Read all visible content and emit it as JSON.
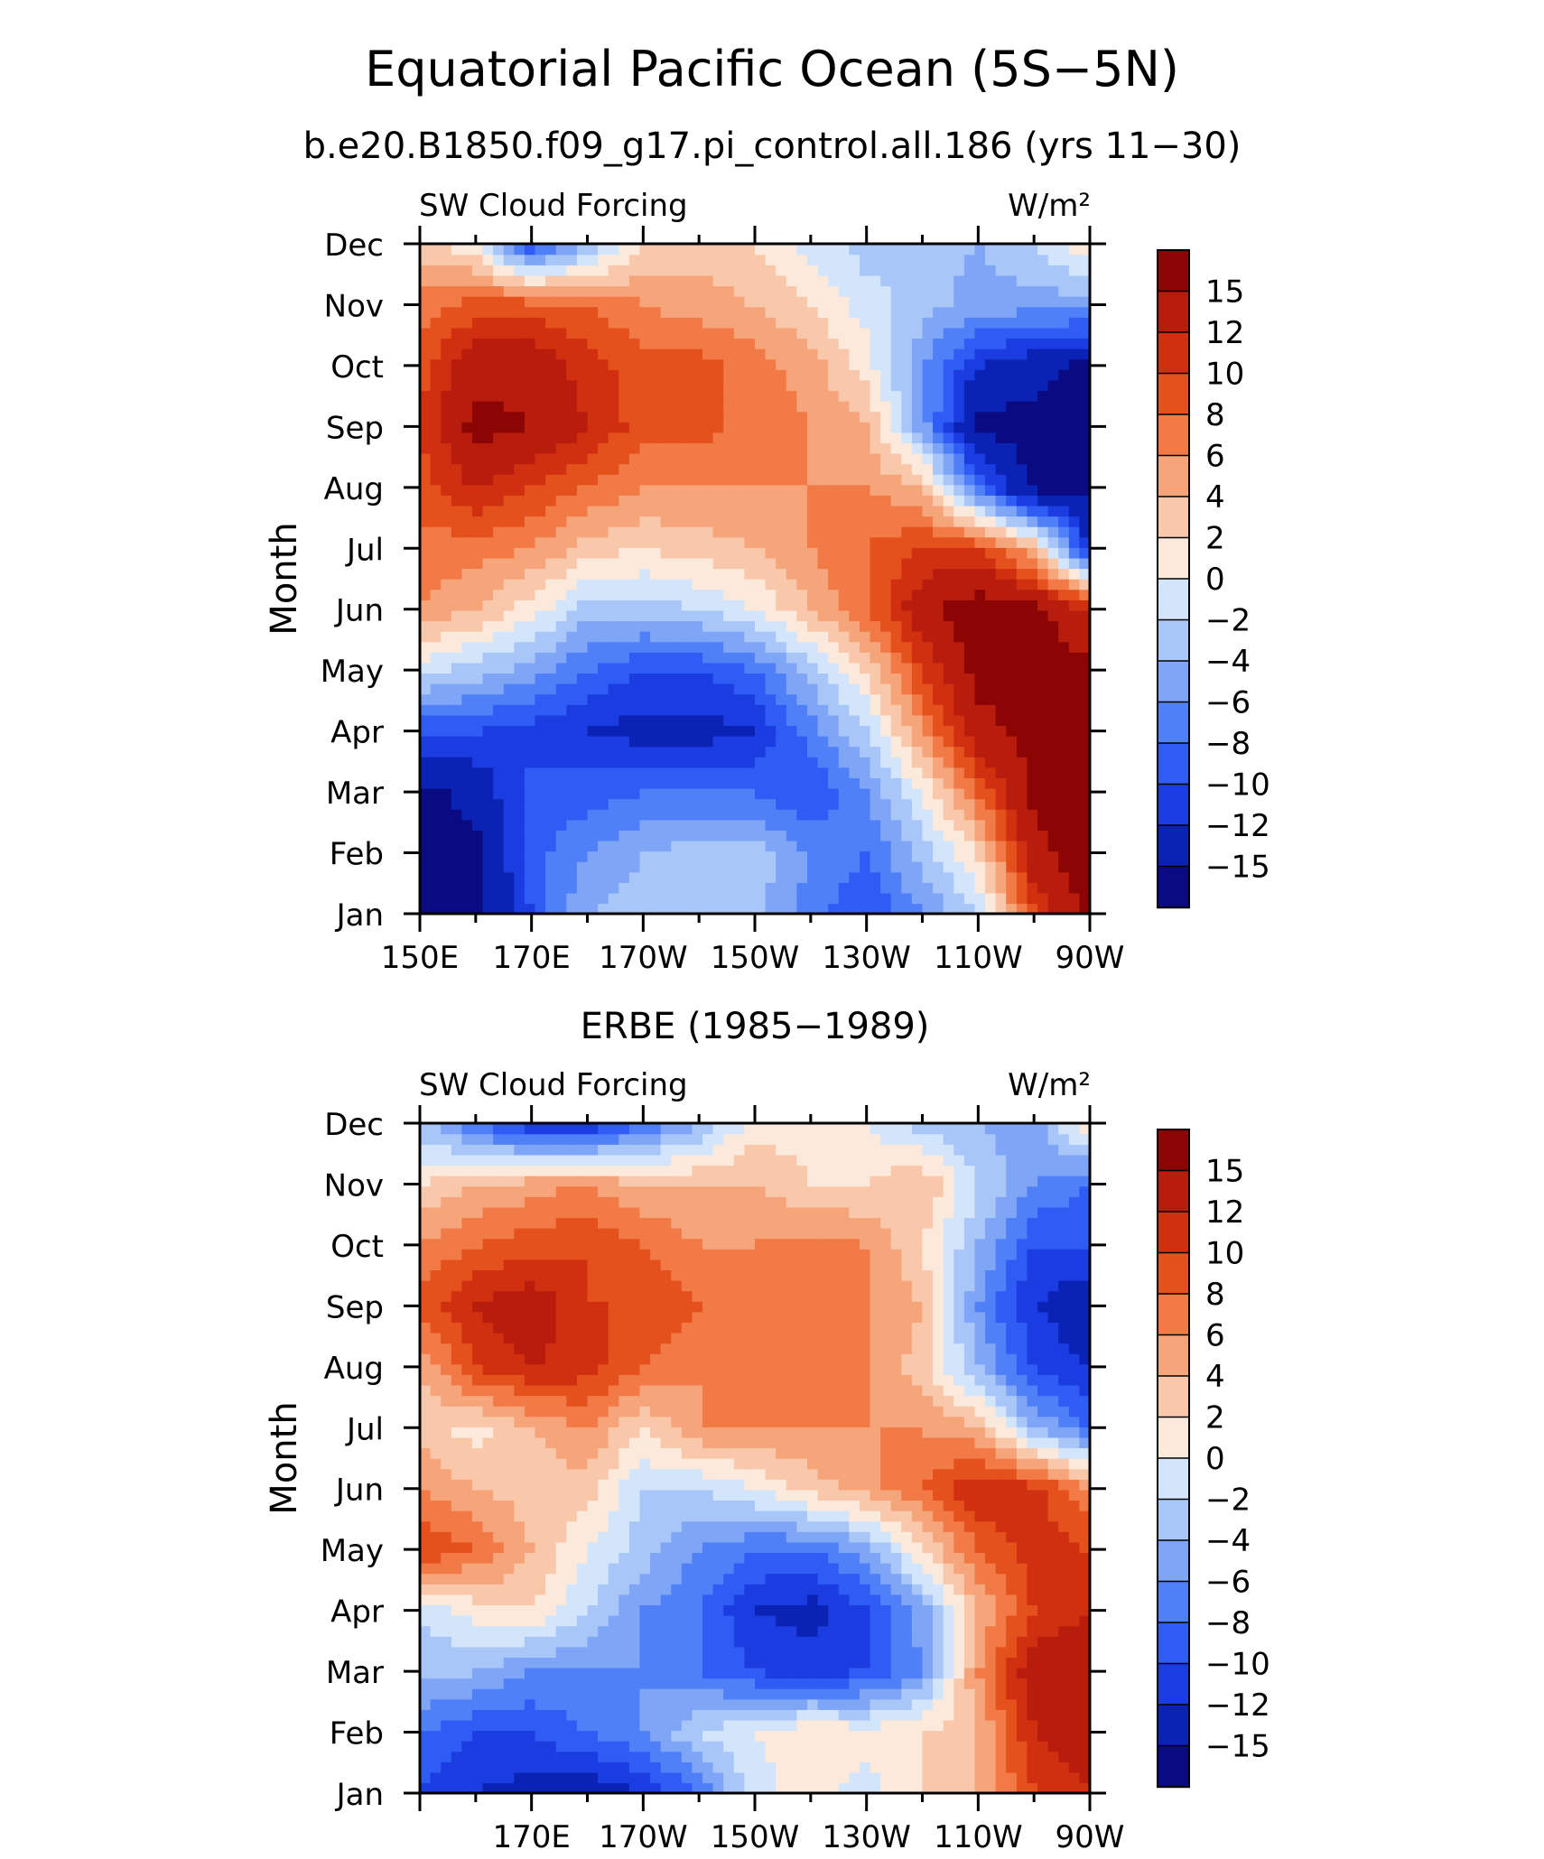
{
  "page": {
    "title": "Equatorial Pacific Ocean (5S−5N)",
    "subtitle": "b.e20.B1850.f09_g17.pi_control.all.186 (yrs 11−30)"
  },
  "colors": {
    "levels": [
      "#0a0a82",
      "#0a23b4",
      "#1a3ce0",
      "#2e5cf5",
      "#4f80f7",
      "#7fa5f6",
      "#a9c6f8",
      "#d2e5fb",
      "#fbe9dc",
      "#f9c8ab",
      "#f6a47a",
      "#f17a46",
      "#e5511c",
      "#d13010",
      "#b81c0c",
      "#8c0505"
    ]
  },
  "chart_data": [
    {
      "type": "heatmap",
      "title": "",
      "left_label": "SW Cloud Forcing",
      "right_label": "W/m²",
      "ylabel": "Month",
      "x_ticklabels": [
        "150E",
        "170E",
        "170W",
        "150W",
        "130W",
        "110W",
        "90W"
      ],
      "y_ticklabels": [
        "Jan",
        "Feb",
        "Mar",
        "Apr",
        "May",
        "Jun",
        "Jul",
        "Aug",
        "Sep",
        "Oct",
        "Nov",
        "Dec"
      ],
      "colorbar_labels": [
        "15",
        "12",
        "10",
        "8",
        "6",
        "4",
        "2",
        "0",
        "−2",
        "−4",
        "−6",
        "−8",
        "−10",
        "−12",
        "−15"
      ],
      "x_range": [
        "150E",
        "90W"
      ],
      "lon_values": [
        "150E",
        "160E",
        "170E",
        "180",
        "170W",
        "160W",
        "150W",
        "140W",
        "130W",
        "120W",
        "110W",
        "100W",
        "90W"
      ],
      "values": [
        [
          -16,
          -16,
          -10,
          -4,
          -3,
          -3,
          -3,
          -7,
          -10,
          -6,
          -2,
          10,
          16
        ],
        [
          -16,
          -16,
          -9,
          -6,
          -4,
          -3,
          -3,
          -6,
          -8,
          -3,
          2,
          14,
          17
        ],
        [
          -16,
          -14,
          -9,
          -9,
          -8,
          -8,
          -8,
          -10,
          -6,
          0,
          8,
          16,
          17
        ],
        [
          -10,
          -10,
          -11,
          -12,
          -13,
          -13,
          -12,
          -7,
          -2,
          6,
          14,
          16,
          17
        ],
        [
          -1,
          -3,
          -5,
          -8,
          -10,
          -10,
          -8,
          -3,
          2,
          10,
          16,
          16,
          16
        ],
        [
          6,
          4,
          1,
          -3,
          -3,
          -2,
          0,
          4,
          8,
          14,
          17,
          16,
          12
        ],
        [
          7,
          7,
          6,
          3,
          2,
          3,
          4,
          6,
          8,
          10,
          10,
          4,
          -12
        ],
        [
          9,
          12,
          10,
          8,
          6,
          6,
          6,
          6,
          6,
          4,
          -8,
          -16,
          -16
        ],
        [
          10,
          16,
          15,
          12,
          9,
          9,
          7,
          6,
          4,
          -5,
          -16,
          -16,
          -16
        ],
        [
          9,
          14,
          14,
          11,
          9,
          9,
          7,
          5,
          1,
          -6,
          -12,
          -14,
          -16
        ],
        [
          7,
          9,
          9,
          8,
          6,
          5,
          4,
          2,
          -1,
          -3,
          -5,
          -5,
          -5
        ],
        [
          3,
          0,
          -10,
          -4,
          2,
          3,
          2,
          -1,
          -3,
          -3,
          -4,
          -2,
          2
        ]
      ]
    },
    {
      "type": "heatmap",
      "title": "ERBE (1985−1989)",
      "left_label": "SW Cloud Forcing",
      "right_label": "W/m²",
      "ylabel": "Month",
      "x_ticklabels": [
        "170E",
        "170W",
        "150W",
        "130W",
        "110W",
        "90W"
      ],
      "y_ticklabels": [
        "Jan",
        "Feb",
        "Mar",
        "Apr",
        "May",
        "Jun",
        "Jul",
        "Aug",
        "Sep",
        "Oct",
        "Nov",
        "Dec"
      ],
      "colorbar_labels": [
        "15",
        "12",
        "10",
        "8",
        "6",
        "4",
        "2",
        "0",
        "−2",
        "−4",
        "−6",
        "−8",
        "−10",
        "−12",
        "−15"
      ],
      "x_range": [
        "150E",
        "90W"
      ],
      "lon_values": [
        "150E",
        "160E",
        "170E",
        "180",
        "170W",
        "160W",
        "150W",
        "140W",
        "130W",
        "120W",
        "110W",
        "100W",
        "90W"
      ],
      "values": [
        [
          -10,
          -12,
          -13,
          -14,
          -12,
          -8,
          -1,
          1,
          -1,
          2,
          4,
          10,
          12
        ],
        [
          -8,
          -10,
          -10,
          -8,
          -6,
          -2,
          0,
          2,
          1,
          2,
          4,
          12,
          14
        ],
        [
          -3,
          -4,
          -6,
          -6,
          -6,
          -8,
          -10,
          -11,
          -10,
          -6,
          6,
          14,
          15
        ],
        [
          -2,
          1,
          2,
          -2,
          -6,
          -8,
          -12,
          -13,
          -10,
          -5,
          4,
          10,
          12
        ],
        [
          10,
          8,
          4,
          0,
          -3,
          -6,
          -8,
          -8,
          -5,
          2,
          8,
          11,
          10
        ],
        [
          6,
          4,
          3,
          3,
          -2,
          -2,
          0,
          3,
          5,
          8,
          12,
          11,
          6
        ],
        [
          3,
          1,
          4,
          6,
          2,
          6,
          6,
          6,
          6,
          6,
          4,
          -4,
          -8
        ],
        [
          4,
          10,
          12,
          11,
          8,
          6,
          6,
          7,
          6,
          3,
          -4,
          -10,
          -12
        ],
        [
          9,
          12,
          14,
          10,
          10,
          8,
          6,
          6,
          6,
          4,
          -6,
          -12,
          -14
        ],
        [
          6,
          8,
          9,
          10,
          8,
          6,
          6,
          7,
          6,
          2,
          -4,
          -10,
          -10
        ],
        [
          2,
          4,
          5,
          6,
          4,
          4,
          4,
          2,
          2,
          4,
          -2,
          -6,
          -8
        ],
        [
          -3,
          -8,
          -12,
          -12,
          -8,
          -4,
          1,
          1,
          0,
          -3,
          -4,
          -5,
          2
        ]
      ]
    }
  ]
}
